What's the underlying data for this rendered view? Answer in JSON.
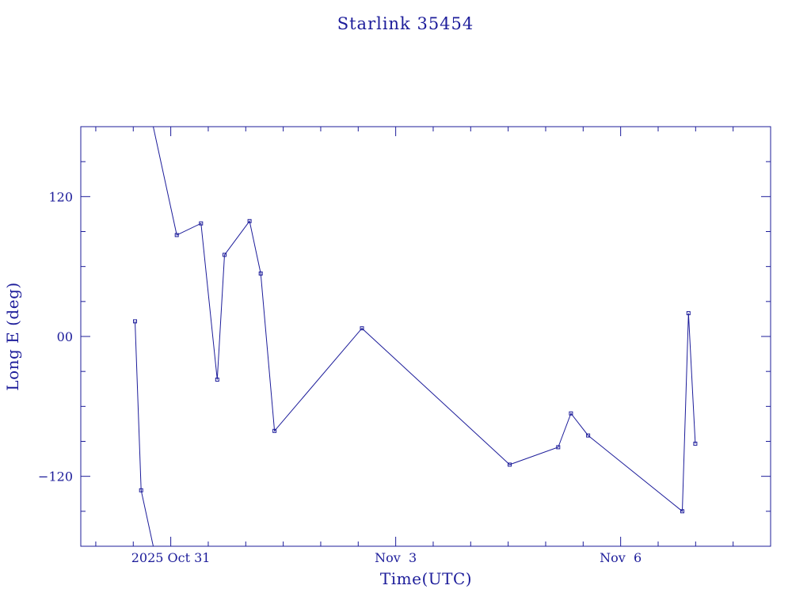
{
  "chart_data": {
    "type": "line",
    "title": "Starlink 35454",
    "xlabel": "Time(UTC)",
    "ylabel": "Long E (deg)",
    "x_ticks": [
      {
        "date": "2025-10-31",
        "label": "2025 Oct 31"
      },
      {
        "date": "2025-11-03",
        "label": "Nov  3"
      },
      {
        "date": "2025-11-06",
        "label": "Nov  6"
      }
    ],
    "y_ticks": [
      {
        "value": 120,
        "label": "120"
      },
      {
        "value": 0,
        "label": "00"
      },
      {
        "value": -120,
        "label": "−120"
      }
    ],
    "xlim": [
      "2025-10-29T19:12",
      "2025-11-08T00:00"
    ],
    "ylim": [
      -180,
      180
    ],
    "x_minor_tick_hours": 12,
    "y_minor_tick_step": 30,
    "grid": false,
    "legend": "none",
    "color": "#1c1c9a",
    "series": [
      {
        "points": [
          {
            "t": "2025-10-30T12:34",
            "y": 13
          },
          {
            "t": "2025-10-30T14:31",
            "y": -132
          },
          {
            "t": "2025-10-31T01:55",
            "y": 87
          },
          {
            "t": "2025-10-31T09:41",
            "y": 97
          },
          {
            "t": "2025-10-31T14:53",
            "y": -37
          },
          {
            "t": "2025-10-31T17:12",
            "y": 70
          },
          {
            "t": "2025-11-01T01:13",
            "y": 99
          },
          {
            "t": "2025-11-01T04:48",
            "y": 54
          },
          {
            "t": "2025-11-01T09:12",
            "y": -81
          },
          {
            "t": "2025-11-02T13:12",
            "y": 7
          },
          {
            "t": "2025-11-04T12:28",
            "y": -110
          },
          {
            "t": "2025-11-05T04:00",
            "y": -95
          },
          {
            "t": "2025-11-05T08:05",
            "y": -66
          },
          {
            "t": "2025-11-05T13:36",
            "y": -85
          },
          {
            "t": "2025-11-06T19:44",
            "y": -150
          },
          {
            "t": "2025-11-06T21:42",
            "y": 20
          },
          {
            "t": "2025-11-06T23:53",
            "y": -92
          }
        ]
      }
    ]
  }
}
